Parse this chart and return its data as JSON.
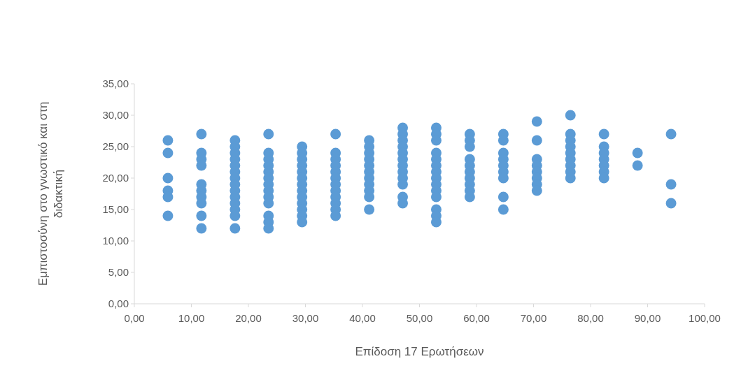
{
  "chart_data": {
    "type": "scatter",
    "xlabel": "Επίδοση 17 Ερωτήσεων",
    "ylabel": "Εμπιστοσύνη στο γνωστικό και στη διδακτική",
    "marker": "circle",
    "grid": false,
    "xlim": [
      0,
      100
    ],
    "xticks": [
      {
        "value": 0,
        "label": "0,00"
      },
      {
        "value": 10,
        "label": "10,00"
      },
      {
        "value": 20,
        "label": "20,00"
      },
      {
        "value": 30,
        "label": "30,00"
      },
      {
        "value": 40,
        "label": "40,00"
      },
      {
        "value": 50,
        "label": "50,00"
      },
      {
        "value": 60,
        "label": "60,00"
      },
      {
        "value": 70,
        "label": "70,00"
      },
      {
        "value": 80,
        "label": "80,00"
      },
      {
        "value": 90,
        "label": "90,00"
      },
      {
        "value": 100,
        "label": "100,00"
      }
    ],
    "ylim": [
      0,
      35
    ],
    "yticks": [
      {
        "value": 0,
        "label": "0,00"
      },
      {
        "value": 5,
        "label": "5,00"
      },
      {
        "value": 10,
        "label": "10,00"
      },
      {
        "value": 15,
        "label": "15,00"
      },
      {
        "value": 20,
        "label": "20,00"
      },
      {
        "value": 25,
        "label": "25,00"
      },
      {
        "value": 30,
        "label": "30,00"
      },
      {
        "value": 35,
        "label": "35,00"
      }
    ],
    "series": [
      {
        "color": "#5b9bd5",
        "x": [
          5.88,
          5.88,
          5.88,
          5.88,
          5.88,
          5.88,
          11.76,
          11.76,
          11.76,
          11.76,
          11.76,
          11.76,
          11.76,
          11.76,
          11.76,
          11.76,
          17.65,
          17.65,
          17.65,
          17.65,
          17.65,
          17.65,
          17.65,
          17.65,
          17.65,
          17.65,
          17.65,
          17.65,
          17.65,
          17.65,
          23.53,
          23.53,
          23.53,
          23.53,
          23.53,
          23.53,
          23.53,
          23.53,
          23.53,
          23.53,
          23.53,
          23.53,
          23.53,
          29.41,
          29.41,
          29.41,
          29.41,
          29.41,
          29.41,
          29.41,
          29.41,
          29.41,
          29.41,
          29.41,
          29.41,
          29.41,
          35.29,
          35.29,
          35.29,
          35.29,
          35.29,
          35.29,
          35.29,
          35.29,
          35.29,
          35.29,
          35.29,
          35.29,
          41.18,
          41.18,
          41.18,
          41.18,
          41.18,
          41.18,
          41.18,
          41.18,
          41.18,
          41.18,
          41.18,
          47.06,
          47.06,
          47.06,
          47.06,
          47.06,
          47.06,
          47.06,
          47.06,
          47.06,
          47.06,
          47.06,
          47.06,
          52.94,
          52.94,
          52.94,
          52.94,
          52.94,
          52.94,
          52.94,
          52.94,
          52.94,
          52.94,
          52.94,
          52.94,
          52.94,
          52.94,
          58.82,
          58.82,
          58.82,
          58.82,
          58.82,
          58.82,
          58.82,
          58.82,
          58.82,
          58.82,
          64.71,
          64.71,
          64.71,
          64.71,
          64.71,
          64.71,
          64.71,
          64.71,
          64.71,
          70.59,
          70.59,
          70.59,
          70.59,
          70.59,
          70.59,
          70.59,
          70.59,
          76.47,
          76.47,
          76.47,
          76.47,
          76.47,
          76.47,
          76.47,
          76.47,
          76.47,
          82.35,
          82.35,
          82.35,
          82.35,
          82.35,
          82.35,
          82.35,
          88.24,
          88.24,
          94.12,
          94.12,
          94.12
        ],
        "values": [
          26,
          24,
          20,
          18,
          17,
          14,
          27,
          24,
          23,
          22,
          19,
          18,
          17,
          16,
          14,
          12,
          26,
          25,
          24,
          23,
          22,
          21,
          20,
          19,
          18,
          17,
          16,
          15,
          14,
          12,
          27,
          24,
          23,
          22,
          21,
          20,
          19,
          18,
          17,
          16,
          14,
          13,
          12,
          25,
          24,
          23,
          22,
          21,
          20,
          19,
          18,
          17,
          16,
          15,
          14,
          13,
          27,
          24,
          23,
          22,
          21,
          20,
          19,
          18,
          17,
          16,
          15,
          14,
          26,
          25,
          24,
          23,
          22,
          21,
          20,
          19,
          18,
          17,
          15,
          28,
          27,
          26,
          25,
          24,
          23,
          22,
          21,
          20,
          19,
          17,
          16,
          28,
          27,
          26,
          24,
          23,
          22,
          21,
          20,
          19,
          18,
          17,
          15,
          14,
          13,
          27,
          26,
          25,
          23,
          22,
          21,
          20,
          19,
          18,
          17,
          27,
          26,
          24,
          23,
          22,
          21,
          20,
          17,
          15,
          29,
          26,
          23,
          22,
          21,
          20,
          19,
          18,
          30,
          27,
          26,
          25,
          24,
          23,
          22,
          21,
          20,
          27,
          25,
          24,
          23,
          22,
          21,
          20,
          24,
          22,
          27,
          19,
          16
        ]
      }
    ]
  }
}
